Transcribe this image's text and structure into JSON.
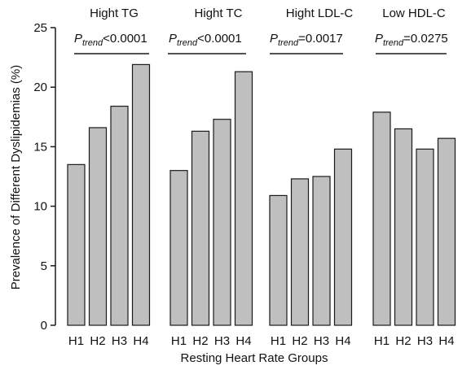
{
  "chart_data": {
    "type": "bar",
    "xlabel": "Resting Heart Rate Groups",
    "ylabel": "Prevalence of Different Dyslipidemias (%)",
    "ylim": [
      0,
      25
    ],
    "yticks": [
      "0",
      "5",
      "10",
      "15",
      "20",
      "25"
    ],
    "categories": [
      "H1",
      "H2",
      "H3",
      "H4"
    ],
    "bar_color": "#bfbfbf",
    "bar_edge_color": "#1a1a1a",
    "grid": false,
    "legend": "none",
    "panels": [
      {
        "title": "Hight TG",
        "p_value": {
          "symbol": "P",
          "subscript": "trend",
          "value": "<0.0001"
        },
        "values": [
          13.5,
          16.6,
          18.4,
          21.9
        ]
      },
      {
        "title": "Hight TC",
        "p_value": {
          "symbol": "P",
          "subscript": "trend",
          "value": "<0.0001"
        },
        "values": [
          13.0,
          16.3,
          17.3,
          21.3
        ]
      },
      {
        "title": "Hight LDL-C",
        "p_value": {
          "symbol": "P",
          "subscript": "trend",
          "value": "=0.0017"
        },
        "values": [
          10.9,
          12.3,
          12.5,
          14.8
        ]
      },
      {
        "title": "Low HDL-C",
        "p_value": {
          "symbol": "P",
          "subscript": "trend",
          "value": "=0.0275"
        },
        "values": [
          17.9,
          16.5,
          14.8,
          15.7
        ]
      }
    ]
  }
}
